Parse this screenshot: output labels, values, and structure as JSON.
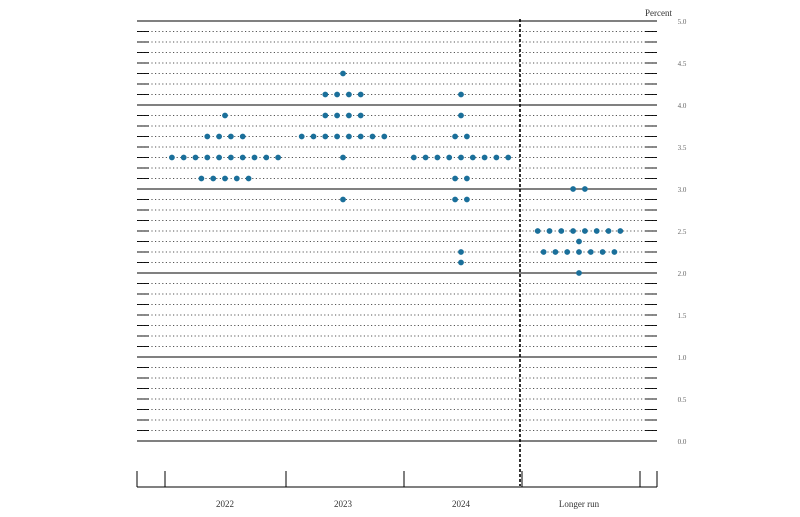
{
  "chart_data": {
    "type": "scatter",
    "unit_label": "Percent",
    "title": "",
    "xlabel": "",
    "ylabel": "",
    "ylim": [
      0.0,
      5.0
    ],
    "y_step": 0.125,
    "y_tick_step": 0.5,
    "y_ticks": [
      "0.0",
      "0.5",
      "1.0",
      "1.5",
      "2.0",
      "2.5",
      "3.0",
      "3.5",
      "4.0",
      "4.5",
      "5.0"
    ],
    "grid": "dotted horizontal at every 1/8 point, solid at each whole percent",
    "categories": [
      "2022",
      "2023",
      "2024",
      "Longer run"
    ],
    "colors": {
      "dot": "#1a6f9a",
      "axis": "#000000",
      "grid": "#555555"
    },
    "divider_after_category": "2024",
    "series": [
      {
        "category": "2022",
        "points": [
          {
            "y": 3.875,
            "count": 1
          },
          {
            "y": 3.625,
            "count": 4
          },
          {
            "y": 3.375,
            "count": 10
          },
          {
            "y": 3.125,
            "count": 5
          }
        ]
      },
      {
        "category": "2023",
        "points": [
          {
            "y": 4.375,
            "count": 1
          },
          {
            "y": 4.125,
            "count": 4
          },
          {
            "y": 3.875,
            "count": 4
          },
          {
            "y": 3.625,
            "count": 8
          },
          {
            "y": 3.375,
            "count": 1
          },
          {
            "y": 2.875,
            "count": 1
          }
        ]
      },
      {
        "category": "2024",
        "points": [
          {
            "y": 4.125,
            "count": 1
          },
          {
            "y": 3.875,
            "count": 1
          },
          {
            "y": 3.625,
            "count": 2
          },
          {
            "y": 3.375,
            "count": 9
          },
          {
            "y": 3.125,
            "count": 2
          },
          {
            "y": 2.875,
            "count": 2
          },
          {
            "y": 2.25,
            "count": 1
          },
          {
            "y": 2.125,
            "count": 1
          }
        ]
      },
      {
        "category": "Longer run",
        "points": [
          {
            "y": 3.0,
            "count": 2
          },
          {
            "y": 2.5,
            "count": 8
          },
          {
            "y": 2.375,
            "count": 1
          },
          {
            "y": 2.25,
            "count": 7
          },
          {
            "y": 2.0,
            "count": 1
          }
        ]
      }
    ]
  }
}
